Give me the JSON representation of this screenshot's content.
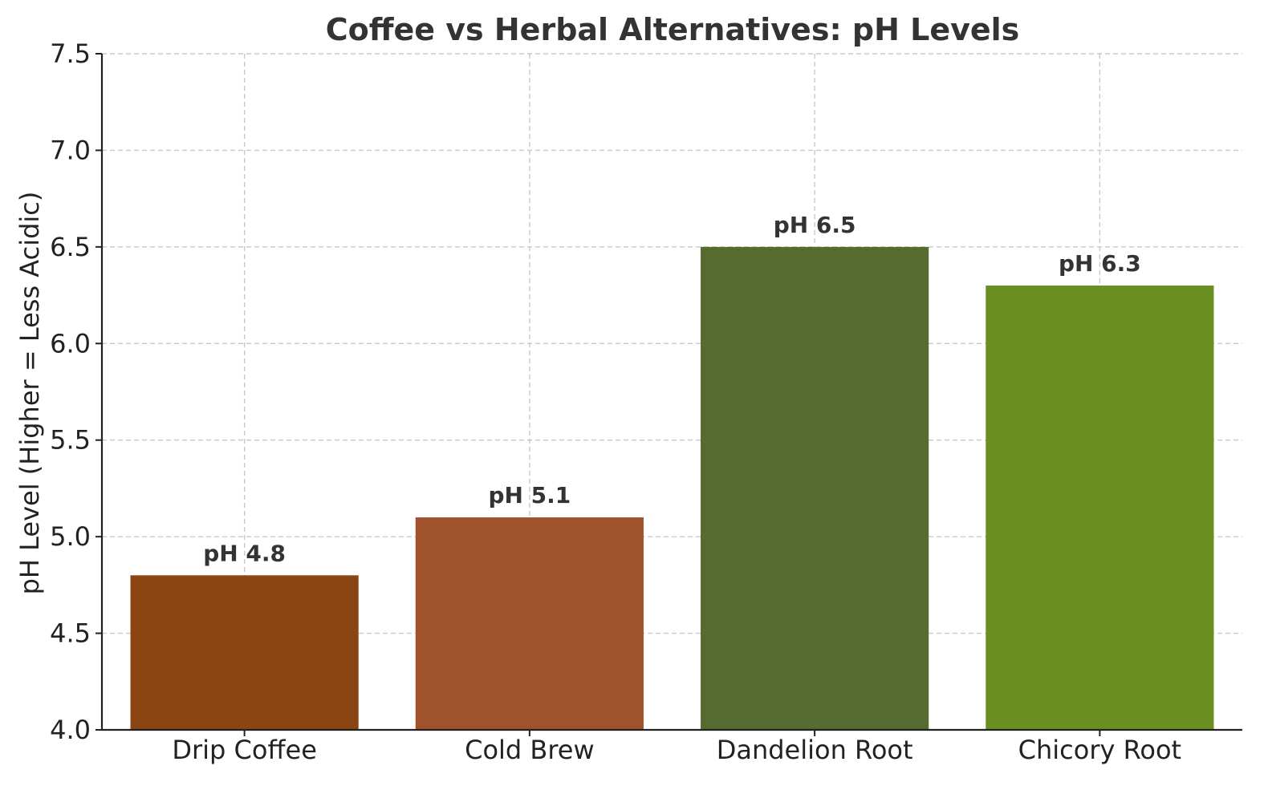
{
  "chart_data": {
    "type": "bar",
    "title": "Coffee vs Herbal Alternatives: pH Levels",
    "xlabel": "",
    "ylabel": "pH Level (Higher = Less Acidic)",
    "categories": [
      "Drip Coffee",
      "Cold Brew",
      "Dandelion Root",
      "Chicory Root"
    ],
    "values": [
      4.8,
      5.1,
      6.5,
      6.3
    ],
    "data_labels": [
      "pH 4.8",
      "pH 5.1",
      "pH 6.5",
      "pH 6.3"
    ],
    "colors": [
      "#8B4513",
      "#A0522D",
      "#556B2F",
      "#6B8E23"
    ],
    "ylim": [
      4.0,
      7.5
    ],
    "yticks": [
      4.0,
      4.5,
      5.0,
      5.5,
      6.0,
      6.5,
      7.0,
      7.5
    ],
    "ytick_labels": [
      "4.0",
      "4.5",
      "5.0",
      "5.5",
      "6.0",
      "6.5",
      "7.0",
      "7.5"
    ],
    "grid": true,
    "legend": null
  }
}
